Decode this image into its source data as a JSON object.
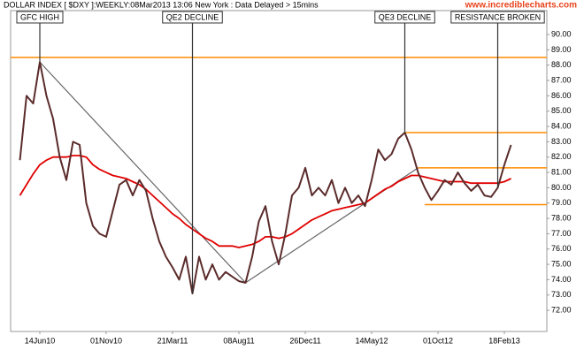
{
  "chart_data": {
    "type": "line",
    "title": "DOLLAR INDEX [ $DXY ]:WEEKLY:08Mar2013 13:06 New York : Data Delayed > 15mins",
    "watermark": "www.incrediblecharts.com",
    "categories": [
      null,
      null,
      null,
      "14Jun10",
      null,
      null,
      null,
      null,
      null,
      null,
      null,
      null,
      null,
      "01Nov10",
      null,
      null,
      null,
      null,
      null,
      null,
      null,
      null,
      null,
      "21Mar11",
      null,
      null,
      null,
      null,
      null,
      null,
      null,
      null,
      null,
      "08Aug11",
      null,
      null,
      null,
      null,
      null,
      null,
      null,
      null,
      null,
      "26Dec11",
      null,
      null,
      null,
      null,
      null,
      null,
      null,
      null,
      null,
      "14May12",
      null,
      null,
      null,
      null,
      null,
      null,
      null,
      null,
      null,
      "01Oct12",
      null,
      null,
      null,
      null,
      null,
      null,
      null,
      null,
      null,
      "18Feb13",
      null
    ],
    "series": [
      {
        "color": "#5b2b2b",
        "values": [
          81.8,
          86.0,
          85.5,
          88.2,
          86.0,
          84.5,
          82.0,
          80.5,
          83.0,
          82.8,
          79.0,
          77.5,
          77.0,
          76.8,
          78.5,
          80.2,
          80.5,
          79.5,
          80.5,
          79.8,
          78.0,
          76.5,
          75.5,
          74.8,
          74.0,
          75.5,
          73.1,
          75.5,
          74.0,
          75.0,
          74.0,
          74.5,
          74.2,
          73.9,
          73.8,
          75.5,
          77.8,
          78.8,
          76.5,
          75.0,
          77.0,
          79.5,
          80.0,
          81.3,
          79.5,
          80.0,
          79.5,
          80.5,
          79.0,
          80.0,
          79.0,
          79.5,
          78.8,
          80.5,
          82.5,
          81.8,
          82.2,
          83.2,
          83.6,
          82.5,
          81.0,
          80.0,
          79.2,
          79.8,
          80.5,
          80.2,
          81.0,
          80.3,
          79.8,
          80.2,
          79.5,
          79.4,
          80.0,
          81.5,
          82.8
        ]
      },
      {
        "color": "#e00000",
        "values": [
          79.5,
          80.2,
          80.9,
          81.5,
          81.8,
          82.0,
          82.0,
          82.0,
          82.1,
          82.1,
          82.0,
          81.5,
          81.2,
          81.0,
          80.8,
          80.7,
          80.6,
          80.4,
          80.2,
          79.9,
          79.5,
          79.1,
          78.7,
          78.3,
          78.0,
          77.6,
          77.3,
          77.0,
          76.7,
          76.5,
          76.2,
          76.2,
          76.2,
          76.1,
          76.2,
          76.3,
          76.5,
          76.8,
          76.8,
          76.7,
          76.8,
          77.0,
          77.3,
          77.6,
          77.9,
          78.1,
          78.3,
          78.5,
          78.6,
          78.7,
          78.8,
          78.9,
          79.0,
          79.3,
          79.6,
          79.9,
          80.1,
          80.4,
          80.6,
          80.8,
          80.8,
          80.7,
          80.6,
          80.5,
          80.4,
          80.4,
          80.4,
          80.4,
          80.3,
          80.3,
          80.3,
          80.3,
          80.3,
          80.4,
          80.6
        ]
      }
    ],
    "ylim": [
      70.62,
      91.56
    ],
    "yticks": [
      {
        "value": 72,
        "label": "72.00"
      },
      {
        "value": 73,
        "label": "73.00"
      },
      {
        "value": 74,
        "label": "74.00"
      },
      {
        "value": 75,
        "label": "75.00"
      },
      {
        "value": 76,
        "label": "76.00"
      },
      {
        "value": 77,
        "label": "77.00"
      },
      {
        "value": 78,
        "label": "78.00"
      },
      {
        "value": 79,
        "label": "79.00"
      },
      {
        "value": 80,
        "label": "80.00"
      },
      {
        "value": 81,
        "label": "81.00"
      },
      {
        "value": 82,
        "label": "82.00"
      },
      {
        "value": 83,
        "label": "83.00"
      },
      {
        "value": 84,
        "label": "84.00"
      },
      {
        "value": 85,
        "label": "85.00"
      },
      {
        "value": 86,
        "label": "86.00"
      },
      {
        "value": 87,
        "label": "87.00"
      },
      {
        "value": 88,
        "label": "88.00"
      },
      {
        "value": 89,
        "label": "89.00"
      },
      {
        "value": 90,
        "label": "90.00"
      }
    ],
    "levels": [
      {
        "value": 88.5,
        "start": 0,
        "color": "#ff8c00"
      },
      {
        "value": 83.6,
        "start": 58,
        "color": "#ff8c00"
      },
      {
        "value": 81.3,
        "start": 60,
        "color": "#ff8c00"
      },
      {
        "value": 78.9,
        "start": 61,
        "color": "#ff8c00"
      }
    ],
    "trend_lines": [
      {
        "x1": 3,
        "y1": 88.2,
        "x2": 34,
        "y2": 73.8,
        "color": "#666666"
      },
      {
        "x1": 34,
        "y1": 73.8,
        "x2": 60,
        "y2": 81.3,
        "color": "#666666"
      }
    ],
    "annotations": [
      {
        "text": "GFC HIGH",
        "index": 3
      },
      {
        "text": "QE2 DECLINE",
        "index": 26
      },
      {
        "text": "QE3 DECLINE",
        "index": 58
      },
      {
        "text": "RESISTANCE BROKEN",
        "index": 72
      }
    ]
  }
}
